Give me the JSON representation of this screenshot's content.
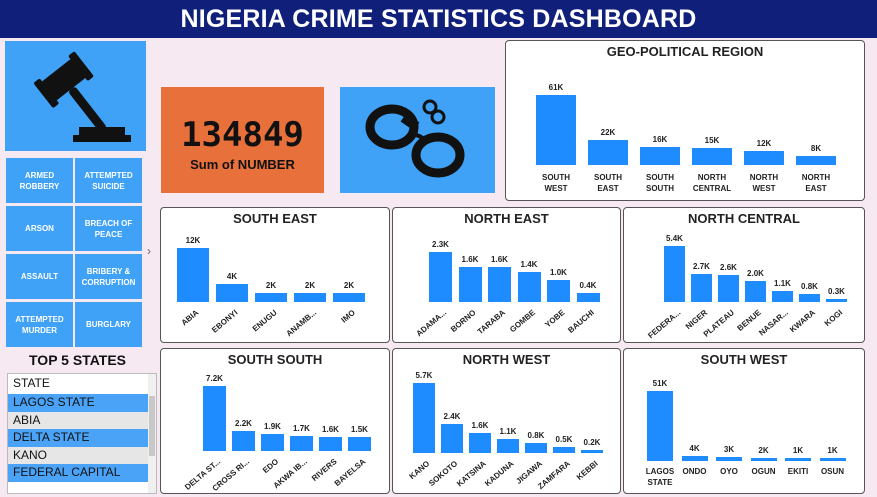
{
  "header": {
    "title": "NIGERIA CRIME STATISTICS DASHBOARD"
  },
  "kpi": {
    "value": "134849",
    "label": "Sum of NUMBER"
  },
  "icons": {
    "gavel": "gavel-icon",
    "handcuffs": "handcuffs-icon",
    "arrow": "chevron-right-icon"
  },
  "colors": {
    "bar": "#1e8cff",
    "title": "#0f1f7a",
    "tile": "#3fa2f7",
    "kpi": "#e8703a"
  },
  "slicers": [
    {
      "label": "ARMED ROBBERY"
    },
    {
      "label": "ATTEMPTED SUICIDE"
    },
    {
      "label": "ARSON"
    },
    {
      "label": "BREACH OF PEACE"
    },
    {
      "label": "ASSAULT"
    },
    {
      "label": "BRIBERY & CORRUPTION"
    },
    {
      "label": "ATTEMPTED MURDER"
    },
    {
      "label": "BURGLARY"
    }
  ],
  "top5": {
    "title": "TOP 5 STATES",
    "header": "STATE",
    "rows": [
      "LAGOS STATE",
      "ABIA",
      "DELTA STATE",
      "KANO",
      "FEDERAL CAPITAL"
    ]
  },
  "chart_data": [
    {
      "id": "geo",
      "type": "bar",
      "title": "GEO-POLITICAL REGION",
      "categories": [
        "SOUTH WEST",
        "SOUTH EAST",
        "SOUTH SOUTH",
        "NORTH CENTRAL",
        "NORTH WEST",
        "NORTH EAST"
      ],
      "values": [
        61000,
        22000,
        16000,
        15000,
        12000,
        8000
      ],
      "labels": [
        "61K",
        "22K",
        "16K",
        "15K",
        "12K",
        "8K"
      ]
    },
    {
      "id": "se",
      "type": "bar",
      "title": "SOUTH EAST",
      "categories": [
        "ABIA",
        "EBONYI",
        "ENUGU",
        "ANAMB...",
        "IMO"
      ],
      "values": [
        12000,
        4000,
        2000,
        2000,
        2000
      ],
      "labels": [
        "12K",
        "4K",
        "2K",
        "2K",
        "2K"
      ]
    },
    {
      "id": "ne",
      "type": "bar",
      "title": "NORTH EAST",
      "categories": [
        "ADAMA...",
        "BORNO",
        "TARABA",
        "GOMBE",
        "YOBE",
        "BAUCHI"
      ],
      "values": [
        2300,
        1600,
        1600,
        1400,
        1000,
        400
      ],
      "labels": [
        "2.3K",
        "1.6K",
        "1.6K",
        "1.4K",
        "1.0K",
        "0.4K"
      ]
    },
    {
      "id": "nc",
      "type": "bar",
      "title": "NORTH CENTRAL",
      "categories": [
        "FEDERA...",
        "NIGER",
        "PLATEAU",
        "BENUE",
        "NASAR...",
        "KWARA",
        "KOGI"
      ],
      "values": [
        5400,
        2700,
        2600,
        2000,
        1100,
        800,
        300
      ],
      "labels": [
        "5.4K",
        "2.7K",
        "2.6K",
        "2.0K",
        "1.1K",
        "0.8K",
        "0.3K"
      ]
    },
    {
      "id": "ss",
      "type": "bar",
      "title": "SOUTH SOUTH",
      "categories": [
        "DELTA ST...",
        "CROSS RI...",
        "EDO",
        "AKWA IB...",
        "RIVERS",
        "BAYELSA"
      ],
      "values": [
        7200,
        2200,
        1900,
        1700,
        1600,
        1500
      ],
      "labels": [
        "7.2K",
        "2.2K",
        "1.9K",
        "1.7K",
        "1.6K",
        "1.5K"
      ]
    },
    {
      "id": "nw",
      "type": "bar",
      "title": "NORTH WEST",
      "categories": [
        "KANO",
        "SOKOTO",
        "KATSINA",
        "KADUNA",
        "JIGAWA",
        "ZAMFARA",
        "KEBBI"
      ],
      "values": [
        5700,
        2400,
        1600,
        1100,
        800,
        500,
        200
      ],
      "labels": [
        "5.7K",
        "2.4K",
        "1.6K",
        "1.1K",
        "0.8K",
        "0.5K",
        "0.2K"
      ]
    },
    {
      "id": "sw",
      "type": "bar",
      "title": "SOUTH WEST",
      "categories": [
        "LAGOS STATE",
        "ONDO",
        "OYO",
        "OGUN",
        "EKITI",
        "OSUN"
      ],
      "values": [
        51000,
        4000,
        3000,
        2000,
        1000,
        1000
      ],
      "labels": [
        "51K",
        "4K",
        "3K",
        "2K",
        "1K",
        "1K"
      ]
    }
  ]
}
